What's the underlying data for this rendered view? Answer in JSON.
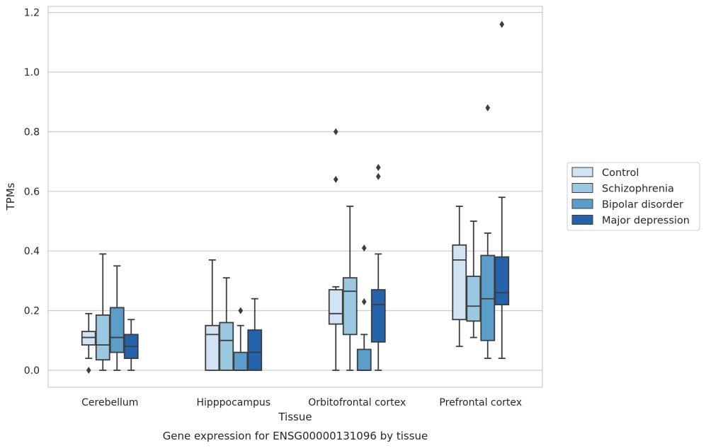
{
  "chart_data": {
    "type": "box",
    "title": "",
    "caption": "Gene expression for ENSG00000131096 by tissue",
    "xlabel": "Tissue",
    "ylabel": "TPMs",
    "ylim": [
      -0.055,
      1.22
    ],
    "yticks": [
      "0.0",
      "0.2",
      "0.4",
      "0.6",
      "0.8",
      "1.0",
      "1.2"
    ],
    "grid": "horizontal",
    "legend_position": "right",
    "categories": [
      "Cerebellum",
      "Hipppocampus",
      "Orbitofrontal cortex",
      "Prefrontal cortex"
    ],
    "series": [
      {
        "name": "Control",
        "color": "#d2e3f3",
        "boxes": [
          {
            "whislo": 0.04,
            "q1": 0.085,
            "med": 0.11,
            "q3": 0.13,
            "whishi": 0.19,
            "fliers": [
              0.0
            ]
          },
          {
            "whislo": 0.0,
            "q1": 0.0,
            "med": 0.12,
            "q3": 0.15,
            "whishi": 0.37,
            "fliers": []
          },
          {
            "whislo": 0.0,
            "q1": 0.155,
            "med": 0.19,
            "q3": 0.27,
            "whishi": 0.28,
            "fliers": [
              0.64,
              0.8
            ]
          },
          {
            "whislo": 0.08,
            "q1": 0.17,
            "med": 0.37,
            "q3": 0.42,
            "whishi": 0.55,
            "fliers": []
          }
        ]
      },
      {
        "name": "Schizophrenia",
        "color": "#9ac8e0",
        "boxes": [
          {
            "whislo": 0.0,
            "q1": 0.035,
            "med": 0.085,
            "q3": 0.185,
            "whishi": 0.39,
            "fliers": []
          },
          {
            "whislo": 0.0,
            "q1": 0.0,
            "med": 0.1,
            "q3": 0.16,
            "whishi": 0.31,
            "fliers": []
          },
          {
            "whislo": 0.0,
            "q1": 0.12,
            "med": 0.265,
            "q3": 0.31,
            "whishi": 0.55,
            "fliers": []
          },
          {
            "whislo": 0.11,
            "q1": 0.165,
            "med": 0.215,
            "q3": 0.315,
            "whishi": 0.5,
            "fliers": []
          }
        ]
      },
      {
        "name": "Bipolar disorder",
        "color": "#5a9ec9",
        "boxes": [
          {
            "whislo": 0.0,
            "q1": 0.06,
            "med": 0.11,
            "q3": 0.21,
            "whishi": 0.35,
            "fliers": []
          },
          {
            "whislo": 0.0,
            "q1": 0.0,
            "med": 0.0,
            "q3": 0.06,
            "whishi": 0.15,
            "fliers": [
              0.2
            ]
          },
          {
            "whislo": 0.0,
            "q1": 0.0,
            "med": 0.0,
            "q3": 0.07,
            "whishi": 0.12,
            "fliers": [
              0.23,
              0.41
            ]
          },
          {
            "whislo": 0.04,
            "q1": 0.1,
            "med": 0.24,
            "q3": 0.385,
            "whishi": 0.46,
            "fliers": [
              0.88
            ]
          }
        ]
      },
      {
        "name": "Major depression",
        "color": "#2462a9",
        "boxes": [
          {
            "whislo": 0.0,
            "q1": 0.04,
            "med": 0.08,
            "q3": 0.12,
            "whishi": 0.17,
            "fliers": []
          },
          {
            "whislo": 0.0,
            "q1": 0.0,
            "med": 0.06,
            "q3": 0.135,
            "whishi": 0.24,
            "fliers": []
          },
          {
            "whislo": 0.0,
            "q1": 0.095,
            "med": 0.22,
            "q3": 0.27,
            "whishi": 0.39,
            "fliers": [
              0.65,
              0.68
            ]
          },
          {
            "whislo": 0.04,
            "q1": 0.22,
            "med": 0.26,
            "q3": 0.38,
            "whishi": 0.58,
            "fliers": [
              1.16
            ]
          }
        ]
      }
    ]
  }
}
